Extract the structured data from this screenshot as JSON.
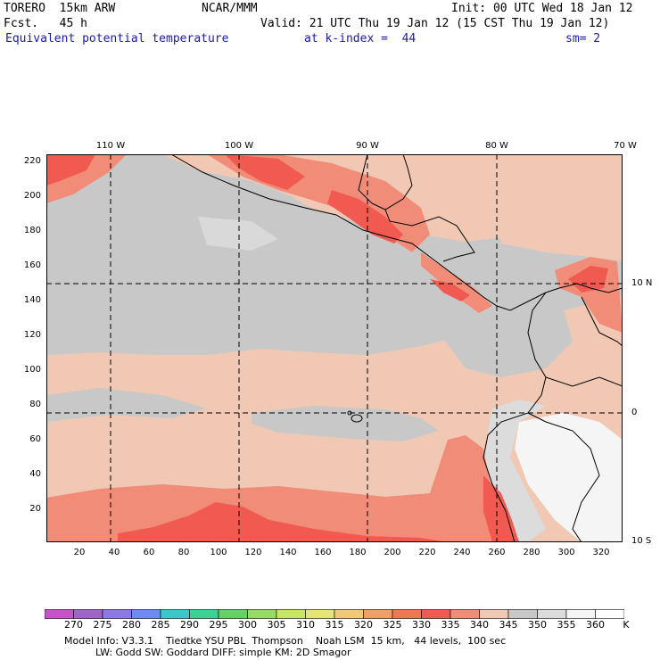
{
  "header": {
    "model": "TORERO  15km ARW",
    "org": "NCAR/MMM",
    "init": "Init: 00 UTC Wed 18 Jan 12",
    "fcst": "Fcst.   45 h",
    "valid": "Valid: 21 UTC Thu 19 Jan 12 (15 CST Thu 19 Jan 12)",
    "field": "Equivalent potential temperature",
    "level": "at k-index =  44",
    "smooth": "sm= 2"
  },
  "axes": {
    "top_lon": [
      "110 W",
      "100 W",
      "90 W",
      "80 W",
      "70 W"
    ],
    "right_lat": [
      "10 N",
      "0",
      "10 S"
    ],
    "left_y": [
      "220",
      "200",
      "180",
      "160",
      "140",
      "120",
      "100",
      "80",
      "60",
      "40",
      "20"
    ],
    "bottom_x": [
      "20",
      "40",
      "60",
      "80",
      "100",
      "120",
      "140",
      "160",
      "180",
      "200",
      "220",
      "240",
      "260",
      "280",
      "300",
      "320"
    ]
  },
  "colorbar": {
    "labels": [
      "270",
      "275",
      "280",
      "285",
      "290",
      "295",
      "300",
      "305",
      "310",
      "315",
      "320",
      "325",
      "330",
      "335",
      "340",
      "345",
      "350",
      "355",
      "360"
    ],
    "unit": "K",
    "colors": [
      "#c850c8",
      "#a064c8",
      "#8c78e6",
      "#6e8cf0",
      "#3cc8c8",
      "#3cd296",
      "#64d264",
      "#96dc64",
      "#c8e664",
      "#e6e678",
      "#f0c878",
      "#f0a064",
      "#f07850",
      "#f05a50",
      "#f08c78",
      "#f0c8b4",
      "#c8c8c8",
      "#dcdcdc",
      "#f5f5f5",
      "#ffffff"
    ]
  },
  "footer": {
    "line1": "Model Info: V3.3.1    Tiedtke YSU PBL  Thompson    Noah LSM  15 km,   44 levels,  100 sec",
    "line2": "          LW: Godd SW: Goddard DIFF: simple KM: 2D Smagor"
  },
  "map_colors": {
    "tan": "#f0c8b4",
    "gray": "#c8c8c8",
    "lightgray": "#dcdcdc",
    "salmon": "#f08c78",
    "red": "#f05a50",
    "white": "#f5f5f5"
  }
}
